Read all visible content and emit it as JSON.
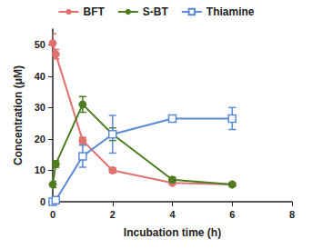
{
  "chart_data": {
    "type": "line",
    "x_label": "Incubation time (h)",
    "y_label": "Concentration (μM)",
    "xlim": [
      0,
      8
    ],
    "xticks": [
      0,
      2,
      4,
      6,
      8
    ],
    "ylim": [
      0,
      55
    ],
    "yticks": [
      0,
      10,
      20,
      30,
      40,
      50
    ],
    "grid": false,
    "legend": "top",
    "series": [
      {
        "name": "BFT",
        "color": "#e0716e",
        "marker": "circle",
        "x": [
          0,
          0.1,
          1,
          2,
          4,
          6
        ],
        "values": [
          50.5,
          47,
          19.5,
          10,
          6,
          5.5
        ],
        "errors": [
          3,
          1.5,
          1,
          0.8,
          0.5,
          0.5
        ]
      },
      {
        "name": "S-BT",
        "color": "#4d7d21",
        "marker": "circle",
        "x": [
          0,
          0.1,
          1,
          2,
          4,
          6
        ],
        "values": [
          5.5,
          12,
          31,
          21.5,
          7,
          5.5
        ],
        "errors": [
          1,
          1,
          2.5,
          2,
          0.8,
          0.5
        ]
      },
      {
        "name": "Thiamine",
        "color": "#5b8ad6",
        "marker": "open_square",
        "x": [
          0,
          0.1,
          1,
          2,
          4,
          6
        ],
        "values": [
          0,
          0.5,
          14.5,
          21.5,
          26.5,
          26.5
        ],
        "errors": [
          0.5,
          0.5,
          3.5,
          6,
          1,
          3.5
        ]
      }
    ]
  }
}
